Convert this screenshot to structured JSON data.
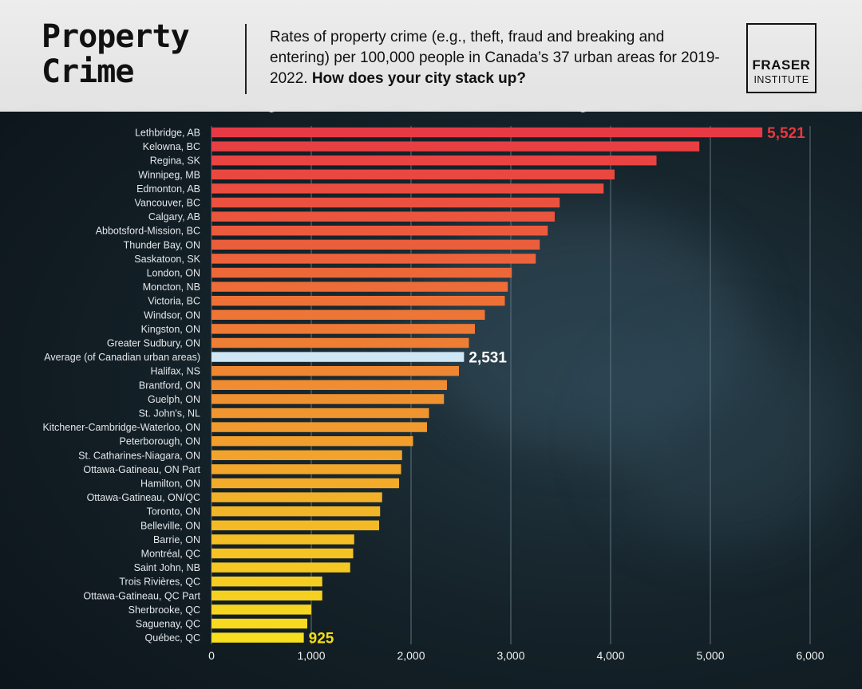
{
  "header": {
    "title_line1": "Property",
    "title_line2": "Crime",
    "subtitle_main": "Rates of property crime (e.g., theft, fraud and breaking and entering) per 100,000 people in Canada’s 37 urban areas for 2019-2022.",
    "subtitle_emphasis": "How does your city stack up?",
    "logo_line1": "FRASER",
    "logo_line2": "INSTITUTE"
  },
  "chart_data": {
    "type": "bar",
    "orientation": "horizontal",
    "categories": [
      "Lethbridge, AB",
      "Kelowna, BC",
      "Regina, SK",
      "Winnipeg, MB",
      "Edmonton, AB",
      "Vancouver, BC",
      "Calgary, AB",
      "Abbotsford-Mission, BC",
      "Thunder Bay, ON",
      "Saskatoon, SK",
      "London, ON",
      "Moncton, NB",
      "Victoria, BC",
      "Windsor, ON",
      "Kingston, ON",
      "Greater Sudbury, ON",
      "Average (of Canadian urban areas)",
      "Halifax, NS",
      "Brantford, ON",
      "Guelph, ON",
      "St. John's, NL",
      "Kitchener-Cambridge-Waterloo, ON",
      "Peterborough, ON",
      "St. Catharines-Niagara, ON",
      "Ottawa-Gatineau, ON Part",
      "Hamilton, ON",
      "Ottawa-Gatineau, ON/QC",
      "Toronto, ON",
      "Belleville, ON",
      "Barrie, ON",
      "Montréal, QC",
      "Saint John, NB",
      "Trois Rivières, QC",
      "Ottawa-Gatineau, QC Part",
      "Sherbrooke, QC",
      "Saguenay, QC",
      "Québec, QC"
    ],
    "values": [
      5521,
      4890,
      4460,
      4040,
      3930,
      3490,
      3440,
      3370,
      3290,
      3250,
      3010,
      2970,
      2940,
      2740,
      2640,
      2580,
      2531,
      2480,
      2360,
      2330,
      2180,
      2160,
      2020,
      1910,
      1900,
      1880,
      1710,
      1690,
      1680,
      1430,
      1420,
      1390,
      1110,
      1110,
      1000,
      960,
      925
    ],
    "highlight_category": "Average (of Canadian urban areas)",
    "value_labels": [
      {
        "category": "Lethbridge, AB",
        "text": "5,521"
      },
      {
        "category": "Average (of Canadian urban areas)",
        "text": "2,531"
      },
      {
        "category": "Québec, QC",
        "text": "925"
      }
    ],
    "xlim": [
      0,
      6000
    ],
    "xticks": [
      0,
      1000,
      2000,
      3000,
      4000,
      5000,
      6000
    ],
    "xtick_labels": [
      "0",
      "1,000",
      "2,000",
      "3,000",
      "4,000",
      "5,000",
      "6,000"
    ],
    "grid": true,
    "legend": "none",
    "colors": {
      "top_bar": "#e83a44",
      "bottom_bar": "#f7de1e",
      "average_bar": "#cfe6f4",
      "top_label": "#e8383f",
      "average_label": "#ffffff",
      "bottom_label": "#f5dc16",
      "grid": "#5f7480"
    }
  }
}
